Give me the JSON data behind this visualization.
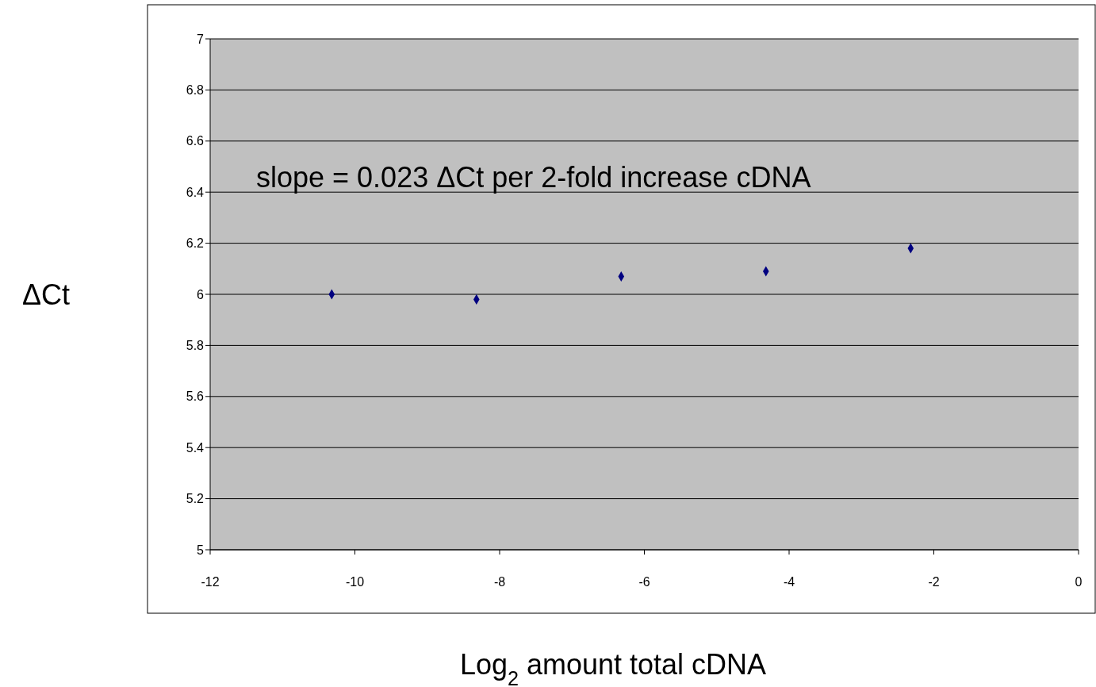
{
  "chart_data": {
    "type": "scatter",
    "xlabel": "Log$_{2}$ amount total cDNA",
    "ylabel": "ΔCt",
    "x": [
      -10.32,
      -8.32,
      -6.32,
      -4.32,
      -2.32
    ],
    "series": [
      {
        "color": "#000080",
        "values": [
          6.0,
          5.98,
          6.07,
          6.09,
          6.18
        ]
      }
    ],
    "xlim": [
      -12,
      0
    ],
    "xticks": [
      -12,
      -10,
      -8,
      -6,
      -4,
      -2,
      0
    ],
    "ylim": [
      5,
      7
    ],
    "yticks": [
      5,
      5.2,
      5.4,
      5.6,
      5.8,
      6,
      6.2,
      6.4,
      6.6,
      6.8,
      7
    ],
    "grid": "y",
    "marker": "diamond",
    "annotations": [
      "slope = 0.023 ΔCt per 2-fold increase cDNA"
    ]
  }
}
